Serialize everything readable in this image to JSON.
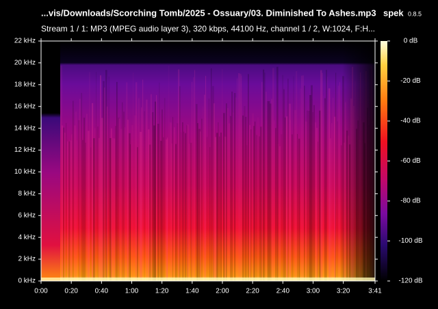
{
  "header": {
    "file": "...vis/Downloads/Scorching Tomb/2025 - Ossuary/03. Diminished To Ashes.mp3",
    "app": "spek",
    "version": "0.8.5",
    "stream": "Stream 1 / 1: MP3 (MPEG audio layer 3), 320 kbps, 44100 Hz, channel 1 / 2, W:1024, F:H..."
  },
  "frequency_axis": {
    "labels": [
      "0 kHz",
      "2 kHz",
      "4 kHz",
      "6 kHz",
      "8 kHz",
      "10 kHz",
      "12 kHz",
      "14 kHz",
      "16 kHz",
      "18 kHz",
      "20 kHz",
      "22 kHz"
    ]
  },
  "time_axis": {
    "labels": [
      "0:00",
      "0:20",
      "0:40",
      "1:00",
      "1:20",
      "1:40",
      "2:00",
      "2:20",
      "2:40",
      "3:00",
      "3:20",
      "3:41"
    ]
  },
  "level_axis": {
    "labels": [
      "0 dB",
      "-20 dB",
      "-40 dB",
      "-60 dB",
      "-80 dB",
      "-100 dB",
      "-120 dB"
    ]
  }
}
